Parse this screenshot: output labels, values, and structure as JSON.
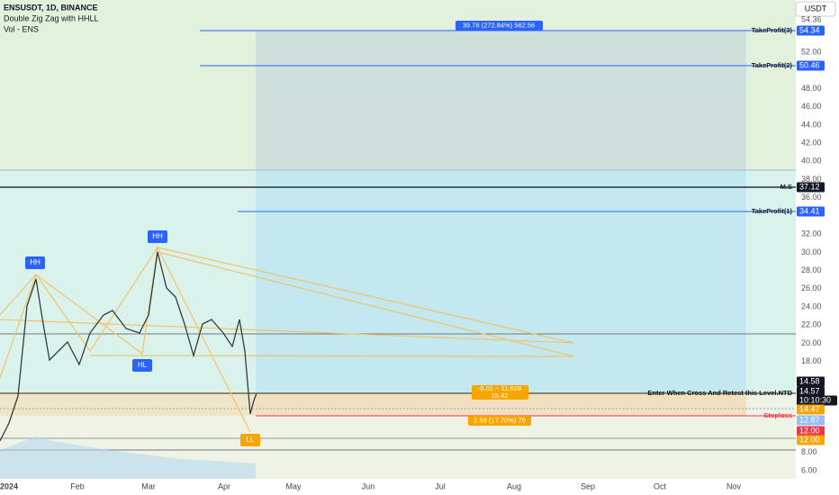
{
  "header": {
    "symbol": "ENSUSDT, 1D, BINANCE",
    "indicator": "Double Zig Zag with HHLL",
    "volume": "Vol - ENS",
    "currency": "USDT"
  },
  "price_axis": {
    "ticks": [
      "54.36",
      "52.00",
      "48.00",
      "46.00",
      "44.00",
      "42.00",
      "40.00",
      "38.00",
      "36.00",
      "32.00",
      "30.00",
      "28.00",
      "26.00",
      "24.00",
      "22.00",
      "20.00",
      "18.00",
      "8.00",
      "6.00"
    ]
  },
  "time_axis": {
    "labels": [
      "2024",
      "Feb",
      "Mar",
      "Apr",
      "May",
      "Jun",
      "Jul",
      "Aug",
      "Sep",
      "Oct",
      "Nov"
    ]
  },
  "badges": [
    {
      "text": "54.34",
      "color": "#2962ff"
    },
    {
      "text": "50.46",
      "color": "#2962ff"
    },
    {
      "text": "37.12",
      "color": "#131722"
    },
    {
      "text": "34.41",
      "color": "#2962ff"
    },
    {
      "text": "14.58",
      "color": "#131722"
    },
    {
      "text": "14.57",
      "color": "#131722"
    },
    {
      "text": "10:10:30",
      "color": "#131722"
    },
    {
      "text": "14.47",
      "color": "#f7a600"
    },
    {
      "text": "12.87",
      "color": "#90bff9"
    },
    {
      "text": "12.00",
      "color": "#f23645"
    },
    {
      "text": "12.00",
      "color": "#f7a600"
    }
  ],
  "levels": {
    "tp3": "TakeProfit(3)",
    "tp2": "TakeProfit(2)",
    "ms": "M.S",
    "tp1": "TakeProfit(1)",
    "entry": "Enter When Cross And Retest this Level.NTD",
    "stoploss": "Stoploss"
  },
  "position": {
    "target": "39.78 (272.84%) 562.56",
    "entry_line1": "-0.01 − 11.628",
    "entry_line2": "15.42",
    "stop": "2.58 (17.70%) 70"
  },
  "pivots": [
    "HH",
    "HH",
    "HL",
    "LL"
  ]
}
